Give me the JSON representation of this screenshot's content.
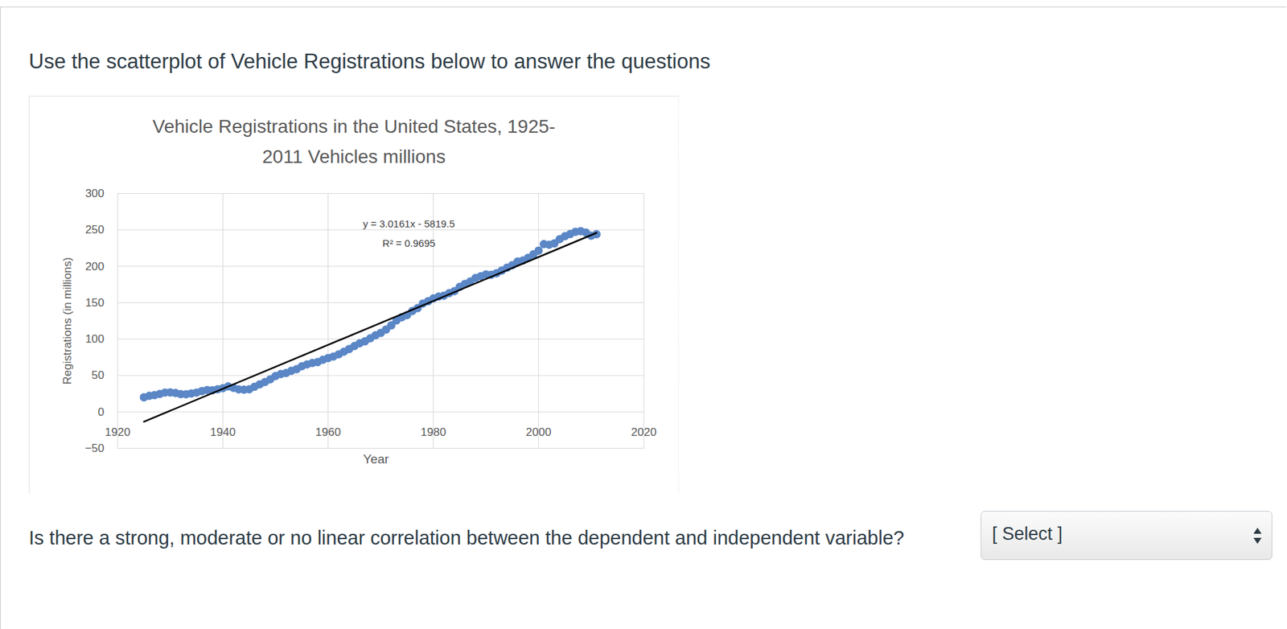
{
  "page": {
    "intro": "Use the scatterplot of Vehicle Registrations below to answer the questions",
    "question": "Is there a strong, moderate or no linear correlation between the dependent and independent variable?",
    "select": "[ Select ]"
  },
  "chart_data": {
    "type": "scatter",
    "title": "Vehicle Registrations in the United States, 1925-\n2011 Vehicles millions",
    "x_label": "Year",
    "y_label": "Registrations (in millions)",
    "x": [
      1925,
      1926,
      1927,
      1928,
      1929,
      1930,
      1931,
      1932,
      1933,
      1934,
      1935,
      1936,
      1937,
      1938,
      1939,
      1940,
      1941,
      1942,
      1943,
      1944,
      1945,
      1946,
      1947,
      1948,
      1949,
      1950,
      1951,
      1952,
      1953,
      1954,
      1955,
      1956,
      1957,
      1958,
      1959,
      1960,
      1961,
      1962,
      1963,
      1964,
      1965,
      1966,
      1967,
      1968,
      1969,
      1970,
      1971,
      1972,
      1973,
      1974,
      1975,
      1976,
      1977,
      1978,
      1979,
      1980,
      1981,
      1982,
      1983,
      1984,
      1985,
      1986,
      1987,
      1988,
      1989,
      1990,
      1991,
      1992,
      1993,
      1994,
      1995,
      1996,
      1997,
      1998,
      1999,
      2000,
      2001,
      2002,
      2003,
      2004,
      2005,
      2006,
      2007,
      2008,
      2009,
      2010,
      2011
    ],
    "values": [
      20,
      22,
      23,
      24.5,
      26.5,
      26.7,
      26,
      24.4,
      24.2,
      25.3,
      26.5,
      28.5,
      30,
      29.7,
      31,
      32.5,
      34.9,
      33,
      30.9,
      30.5,
      31,
      34.4,
      37.8,
      41,
      44.7,
      49.2,
      51.9,
      53.3,
      56.3,
      58.6,
      62.7,
      65.2,
      67.1,
      68.3,
      71.5,
      73.9,
      76,
      79,
      82.7,
      86.3,
      90.4,
      94.2,
      96.9,
      101,
      105.1,
      108.4,
      113,
      118.8,
      125.7,
      129.9,
      132.9,
      138.5,
      142.4,
      148.8,
      151.9,
      155.8,
      158.3,
      159.6,
      163.1,
      165.8,
      171.7,
      175.7,
      179,
      183.9,
      186.3,
      188.8,
      188.4,
      190.4,
      194.1,
      198,
      201.5,
      206.4,
      207.8,
      211.6,
      216.3,
      221.5,
      230.4,
      229.6,
      231.4,
      237.2,
      241.2,
      244.2,
      247.3,
      248.2,
      246.3,
      242,
      244
    ],
    "color": "#5b87c6",
    "marker": "circle",
    "trendline": {
      "x": [
        1925,
        2011
      ],
      "values": [
        -13.5,
        245.9
      ],
      "color": "#000000",
      "line_style": "solid"
    },
    "annotations": [
      "y = 3.0161x - 5819.5",
      "R² = 0.9695"
    ],
    "xlim": [
      1920,
      2020
    ],
    "xticks": [
      1920,
      1940,
      1960,
      1980,
      2000,
      2020
    ],
    "ylim": [
      -50,
      300
    ],
    "yticks": [
      -50,
      0,
      50,
      100,
      150,
      200,
      250,
      300
    ],
    "grid": true
  }
}
